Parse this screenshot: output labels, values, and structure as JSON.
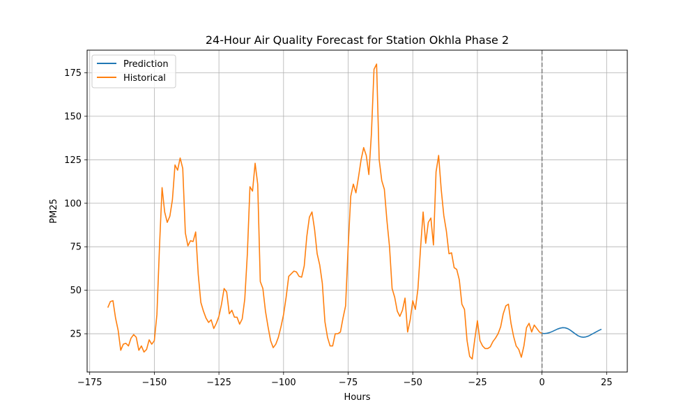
{
  "chart_data": {
    "type": "line",
    "title": "24-Hour Air Quality Forecast for Station Okhla Phase 2",
    "xlabel": "Hours",
    "ylabel": "PM25",
    "xlim": [
      -176,
      33
    ],
    "ylim": [
      3,
      188
    ],
    "xticks": [
      -175,
      -150,
      -125,
      -100,
      -75,
      -50,
      -25,
      0,
      25
    ],
    "xtick_labels": [
      "−175",
      "−150",
      "−125",
      "−100",
      "−75",
      "−50",
      "−25",
      "0",
      "25"
    ],
    "yticks": [
      25,
      50,
      75,
      100,
      125,
      150,
      175
    ],
    "ytick_labels": [
      "25",
      "50",
      "75",
      "100",
      "125",
      "150",
      "175"
    ],
    "grid": true,
    "legend_position": "top-left",
    "vline": {
      "x": 0,
      "style": "dashed",
      "color": "#808080"
    },
    "series": [
      {
        "name": "Prediction",
        "color": "#1f77b4",
        "x": [
          0,
          1,
          2,
          3,
          4,
          5,
          6,
          7,
          8,
          9,
          10,
          11,
          12,
          13,
          14,
          15,
          16,
          17,
          18,
          19,
          20,
          21,
          22,
          23
        ],
        "y": [
          25.2,
          25.1,
          25.3,
          25.7,
          26.3,
          27.0,
          27.7,
          28.2,
          28.5,
          28.4,
          27.9,
          27.0,
          25.9,
          24.8,
          23.8,
          23.2,
          23.0,
          23.2,
          23.7,
          24.5,
          25.3,
          26.1,
          26.9,
          27.6
        ]
      },
      {
        "name": "Historical",
        "color": "#ff7f0e",
        "x": [
          -168,
          -167,
          -166,
          -165,
          -164,
          -163,
          -162,
          -161,
          -160,
          -159,
          -158,
          -157,
          -156,
          -155,
          -154,
          -153,
          -152,
          -151,
          -150,
          -149,
          -148,
          -147,
          -146,
          -145,
          -144,
          -143,
          -142,
          -141,
          -140,
          -139,
          -138,
          -137,
          -136,
          -135,
          -134,
          -133,
          -132,
          -131,
          -130,
          -129,
          -128,
          -127,
          -126,
          -125,
          -124,
          -123,
          -122,
          -121,
          -120,
          -119,
          -118,
          -117,
          -116,
          -115,
          -114,
          -113,
          -112,
          -111,
          -110,
          -109,
          -108,
          -107,
          -106,
          -105,
          -104,
          -103,
          -102,
          -101,
          -100,
          -99,
          -98,
          -97,
          -96,
          -95,
          -94,
          -93,
          -92,
          -91,
          -90,
          -89,
          -88,
          -87,
          -86,
          -85,
          -84,
          -83,
          -82,
          -81,
          -80,
          -79,
          -78,
          -77,
          -76,
          -75,
          -74,
          -73,
          -72,
          -71,
          -70,
          -69,
          -68,
          -67,
          -66,
          -65,
          -64,
          -63,
          -62,
          -61,
          -60,
          -59,
          -58,
          -57,
          -56,
          -55,
          -54,
          -53,
          -52,
          -51,
          -50,
          -49,
          -48,
          -47,
          -46,
          -45,
          -44,
          -43,
          -42,
          -41,
          -40,
          -39,
          -38,
          -37,
          -36,
          -35,
          -34,
          -33,
          -32,
          -31,
          -30,
          -29,
          -28,
          -27,
          -26,
          -25,
          -24,
          -23,
          -22,
          -21,
          -20,
          -19,
          -18,
          -17,
          -16,
          -15,
          -14,
          -13,
          -12,
          -11,
          -10,
          -9,
          -8,
          -7,
          -6,
          -5,
          -4,
          -3,
          -2,
          -1,
          0
        ],
        "y": [
          40,
          43.5,
          44,
          34,
          27,
          15.5,
          19,
          19.5,
          18,
          22.5,
          24.5,
          23,
          15.5,
          18,
          14.5,
          16,
          21.5,
          19,
          21,
          36,
          75,
          109,
          95,
          89,
          92.5,
          102,
          122,
          119,
          126,
          120,
          83,
          75.5,
          78.5,
          78,
          83.5,
          59,
          43,
          38,
          34,
          31.5,
          33,
          28,
          31,
          35,
          42,
          51,
          49,
          36.5,
          38.5,
          34.5,
          34.5,
          30.5,
          33.5,
          45,
          71,
          109.5,
          107,
          123,
          111,
          55,
          51,
          38,
          29,
          21,
          17,
          19,
          23,
          29,
          36,
          46,
          58,
          59.5,
          61,
          60.5,
          58,
          57.5,
          64,
          81,
          92,
          95,
          85,
          71,
          64.5,
          54,
          32,
          23,
          18,
          18,
          25,
          25,
          26,
          34,
          41,
          75,
          104,
          111,
          106,
          115,
          125,
          132,
          127.5,
          116.5,
          140,
          177,
          180,
          125,
          113,
          108,
          90,
          75,
          51,
          46,
          38,
          35,
          38.5,
          45.5,
          26,
          33,
          44,
          39,
          51,
          74,
          95,
          77,
          89,
          91.5,
          76,
          118,
          127.5,
          108,
          93,
          84,
          71,
          71.5,
          63,
          62,
          56,
          42,
          39,
          21,
          12,
          10.5,
          22,
          32.5,
          21,
          18,
          16.5,
          16.5,
          17.5,
          20.5,
          22.5,
          25,
          29,
          36.5,
          41,
          42,
          31,
          23.5,
          18,
          16,
          11.5,
          18,
          28.5,
          31,
          26,
          30,
          28,
          26,
          25.2
        ]
      }
    ]
  }
}
